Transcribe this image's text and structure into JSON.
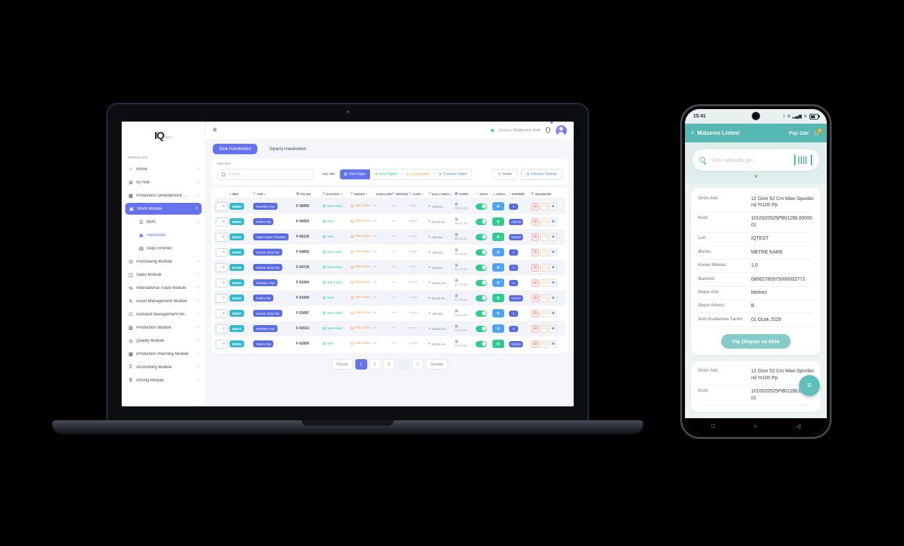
{
  "colors": {
    "accent_blue": "#6673ee",
    "teal_badge": "#36b9c9",
    "green": "#2ecc8e",
    "orange": "#f5a14b",
    "indigo_badge": "#5a6ce0",
    "entg_blue": "#4da3f5",
    "phone_teal": "#57b7b2",
    "cart_badge_orange": "#f59e0b"
  },
  "laptop": {
    "logo": {
      "main": "IQ",
      "suffix": "MES"
    },
    "sidebar": {
      "section_label": "MENULER",
      "items": [
        {
          "label": "Home",
          "icon": "home-icon",
          "glyph": "⌂",
          "chev": "›"
        },
        {
          "label": "IQ Hub",
          "icon": "monitor-icon",
          "glyph": "⊞",
          "chev": "›"
        },
        {
          "label": "Production Development ...",
          "icon": "production-development-icon",
          "glyph": "▦",
          "chev": "›"
        },
        {
          "label": "Stock Module",
          "icon": "stock-module-icon",
          "glyph": "▣",
          "chev": "˅",
          "active": true
        },
        {
          "label": "BMS",
          "icon": "bms-icon",
          "glyph": "☰",
          "chev": "›",
          "child": true
        },
        {
          "label": "Hareketler",
          "icon": "movements-icon",
          "glyph": "▣",
          "child": true,
          "highlight": true
        },
        {
          "label": "Depo Emirleri",
          "icon": "warehouse-orders-icon",
          "glyph": "▤",
          "child": true
        },
        {
          "label": "Purchasing Module",
          "icon": "purchasing-icon",
          "glyph": "⊟",
          "chev": "›"
        },
        {
          "label": "Sales Module",
          "icon": "sales-icon",
          "glyph": "◫",
          "chev": "›"
        },
        {
          "label": "International Trade Module",
          "icon": "trade-icon",
          "glyph": "⇆",
          "chev": "›"
        },
        {
          "label": "Asset Management Module",
          "icon": "asset-icon",
          "glyph": "✎",
          "chev": "›"
        },
        {
          "label": "Demand Management Mo..",
          "icon": "demand-icon",
          "glyph": "☷",
          "chev": "›"
        },
        {
          "label": "Production Module",
          "icon": "production-icon",
          "glyph": "▥",
          "chev": "›"
        },
        {
          "label": "Quality Module",
          "icon": "quality-icon",
          "glyph": "◎",
          "chev": "›"
        },
        {
          "label": "Production Planning Module",
          "icon": "planning-icon",
          "glyph": "▦",
          "chev": "›"
        },
        {
          "label": "Accounting Module",
          "icon": "accounting-icon",
          "glyph": "Σ",
          "chev": "›"
        },
        {
          "label": "Pricing Module",
          "icon": "pricing-icon",
          "glyph": "$",
          "chev": "›"
        }
      ]
    },
    "topbar": {
      "server_status": "Sunucu Bağlantısı Aktif"
    },
    "tabs": [
      {
        "label": "Stok Hareketleri",
        "active": true
      },
      {
        "label": "Sipariş Hareketleri",
        "active": false
      }
    ],
    "filters": {
      "search_label": "ARAMA",
      "search_placeholder": "Fiş ara...",
      "type_label": "FİŞ TİPİ",
      "type_buttons": [
        {
          "label": "Tüm Fişler",
          "glyph": "▤",
          "style": "active"
        },
        {
          "label": "Giriş Fişleri",
          "glyph": "⊕",
          "style": "teal"
        },
        {
          "label": "Çıkış Fişleri",
          "glyph": "⊖",
          "style": "orange"
        },
        {
          "label": "Transfer Fişleri",
          "glyph": "⇅",
          "style": "blue"
        }
      ],
      "refresh_label": "Yenile",
      "refresh_glyph": "↻",
      "clear_label": "Filtreleri Temizle",
      "clear_glyph": "⊗"
    },
    "table": {
      "columns": [
        {
          "icon": "#",
          "label": "REF",
          "caret": ""
        },
        {
          "icon": "▽",
          "label": "TÜR",
          "caret": "▾"
        },
        {
          "icon": "▤",
          "label": "FİŞ NO",
          "caret": ""
        },
        {
          "icon": "▽",
          "label": "KAYNAK",
          "caret": "▾"
        },
        {
          "icon": "▽",
          "label": "HEDEF",
          "caret": "▾"
        },
        {
          "icon": "◌",
          "label": "AÇIKLAMA",
          "caret": ""
        },
        {
          "icon": "▽",
          "label": "SİPARİŞ",
          "caret": "▾"
        },
        {
          "icon": "▽",
          "label": "CARİ",
          "caret": "▾"
        },
        {
          "icon": "▽",
          "label": "KULLANICI",
          "caret": "▾"
        },
        {
          "icon": "▦",
          "label": "TARİH",
          "caret": ""
        },
        {
          "icon": "✓",
          "label": "ONAY",
          "caret": ""
        },
        {
          "icon": "▲",
          "label": "ENTG",
          "caret": ""
        },
        {
          "icon": "=",
          "label": "ERPREF",
          "caret": ""
        },
        {
          "icon": "⚙",
          "label": "İŞLEMLER",
          "caret": ""
        }
      ],
      "rows": [
        {
          "ref": "56856",
          "tur": "Tesellüm Fişi",
          "fis_no": "F-56856",
          "kaynak": "Mal Kabul",
          "hedef": "Mal Kabul",
          "aciklama": "***",
          "siparis": "***",
          "cari": "***|***",
          "kullanici": "rasit.gu...",
          "tarih": "06.11.25",
          "onay": true,
          "entg": "blue",
          "erpref": "0"
        },
        {
          "ref": "56654",
          "tur": "Teslim Fişi",
          "fis_no": "F-56654",
          "kaynak": "Red",
          "hedef": "Mal Kabul",
          "aciklama": "***",
          "siparis": "***",
          "cari": "***|***",
          "kullanici": "beyza.se...",
          "tarih": "06.11.25",
          "onay": true,
          "entg": "green",
          "erpref": "125709"
        },
        {
          "ref": "56118",
          "tur": "Toplu Adres Transferi",
          "fis_no": "F-56118",
          "kaynak": "Red",
          "hedef": "Mal Kabul",
          "aciklama": "***",
          "siparis": "***",
          "cari": "***|***",
          "kullanici": "rasit.gu...",
          "tarih": "05.11.25",
          "onay": true,
          "entg": "green",
          "erpref": "121962"
        },
        {
          "ref": "54830",
          "tur": "Virman Giriş Fişi",
          "fis_no": "F-54830",
          "kaynak": "Mal Kabul",
          "hedef": "Mal Kabul",
          "aciklama": "***",
          "siparis": "***",
          "cari": "***|***",
          "kullanici": "rasit.gu...",
          "tarih": "31.10.25",
          "onay": true,
          "entg": "blue",
          "erpref": "0"
        },
        {
          "ref": "54736",
          "tur": "Virman Giriş Fişi",
          "fis_no": "F-54736",
          "kaynak": "Mal Kabul",
          "hedef": "Mal Kabul",
          "aciklama": "***",
          "siparis": "***",
          "cari": "***|***",
          "kullanici": "rasit.gu...",
          "tarih": "31.10.25",
          "onay": true,
          "entg": "blue",
          "erpref": "0"
        },
        {
          "ref": "53494",
          "tur": "Tesellüm Fişi",
          "fis_no": "F-53494",
          "kaynak": "Mal Kabul",
          "hedef": "Mal Kabul",
          "aciklama": "***",
          "siparis": "***",
          "cari": "***|***",
          "kullanici": "susam.ko...",
          "tarih": "27.10.25",
          "onay": true,
          "entg": "blue",
          "erpref": "0"
        },
        {
          "ref": "53309",
          "tur": "Teslim Fişi",
          "fis_no": "F-53309",
          "kaynak": "Red",
          "hedef": "Mal Kabul",
          "aciklama": "***",
          "siparis": "***",
          "cari": "***|***",
          "kullanici": "beyza.se...",
          "tarih": "27.10.25",
          "onay": true,
          "entg": "green",
          "erpref": "118270"
        },
        {
          "ref": "53087",
          "tur": "Virman Giriş Fişi",
          "fis_no": "F-53087",
          "kaynak": "Mal Kabul",
          "hedef": "Mal Kabul",
          "aciklama": "***",
          "siparis": "***",
          "cari": "***|***",
          "kullanici": "rasit.gu...",
          "tarih": "24.10.25",
          "onay": true,
          "entg": "blue",
          "erpref": "0"
        },
        {
          "ref": "53013",
          "tur": "Tesellüm Fişi",
          "fis_no": "F-53013",
          "kaynak": "Mal Kabul",
          "hedef": "Mal Kabul",
          "aciklama": "***",
          "siparis": "***",
          "cari": "***|***",
          "kullanici": "susam.ko...",
          "tarih": "24.10.25",
          "onay": true,
          "entg": "blue",
          "erpref": "0"
        },
        {
          "ref": "52839",
          "tur": "Teslim Fişi",
          "fis_no": "F-52839",
          "kaynak": "Red",
          "hedef": "Mal Kabul",
          "aciklama": "***",
          "siparis": "***",
          "cari": "***|***",
          "kullanici": "beyza.se...",
          "tarih": "24.10.25",
          "onay": true,
          "entg": "green",
          "erpref": "110145"
        }
      ]
    },
    "pagination": {
      "prev": "Önceki",
      "pages": [
        "1",
        "2",
        "3",
        "...",
        "7"
      ],
      "active_page": "1",
      "next": "Sonraki"
    }
  },
  "phone": {
    "status": {
      "time": "15:41"
    },
    "appbar": {
      "back_glyph": "‹",
      "title": "Malzeme Listesi",
      "action_label": "Fişi Gör",
      "cart_glyph": "⊔",
      "cart_badge": "0"
    },
    "search": {
      "placeholder": "Ürün adı/kodu giri...",
      "chevron": "˅"
    },
    "material_card": {
      "fields": [
        {
          "label": "Ürün Adı:",
          "value": "12 Gsm 52 Cm Mavi Spunbond %100 Pp"
        },
        {
          "label": "Kod:",
          "value": "1010020525PB012BL0000001"
        },
        {
          "label": "Lot:",
          "value": "IQTEST"
        },
        {
          "label": "Birim:",
          "value": "METRE KARE"
        },
        {
          "label": "Kalan Miktar:",
          "value": "1.0"
        },
        {
          "label": "Barkod:",
          "value": "08682780975000002772"
        },
        {
          "label": "Depo Adı:",
          "value": "Merkez"
        },
        {
          "label": "Depo Adres:",
          "value": "B"
        },
        {
          "label": "Son Kullanma Tarihi:",
          "value": "01 Ocak 2026"
        }
      ],
      "button_label": "Fiş Oluştur ve Ekle"
    },
    "material_card_2": {
      "fields": [
        {
          "label": "Ürün Adı:",
          "value": "12 Gsm 52 Cm Mavi Spunbond %100 Pp"
        },
        {
          "label": "Kod:",
          "value": "1010020525PB012BL0000001"
        }
      ]
    }
  }
}
